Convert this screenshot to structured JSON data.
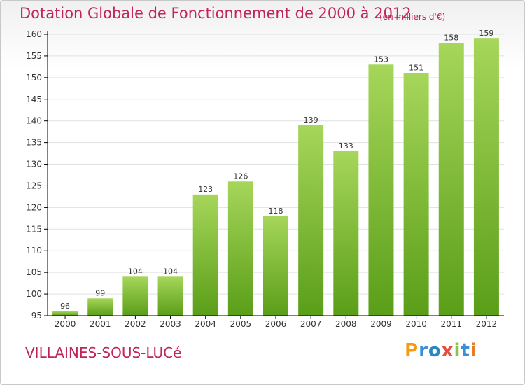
{
  "title": "Dotation Globale de Fonctionnement de 2000 à 2012",
  "subtitle": "(en milliers d'€)",
  "commune": "VILLAINES-SOUS-LUCé",
  "logo_text": "Proxiti",
  "colors": {
    "title": "#c0245a",
    "bar_light": "#a6d65a",
    "bar_dark": "#5a9e18",
    "axis": "#000000",
    "grid": "#e0e0e0",
    "label": "#333333"
  },
  "chart_data": {
    "type": "bar",
    "categories": [
      "2000",
      "2001",
      "2002",
      "2003",
      "2004",
      "2005",
      "2006",
      "2007",
      "2008",
      "2009",
      "2010",
      "2011",
      "2012"
    ],
    "values": [
      96,
      99,
      104,
      104,
      123,
      126,
      118,
      139,
      133,
      153,
      151,
      158,
      159
    ],
    "data_labels": [
      "96",
      "99",
      "104",
      "104",
      "123",
      "126",
      "118",
      "139",
      "133",
      "153",
      "151",
      "158",
      "159"
    ],
    "title": "Dotation Globale de Fonctionnement de 2000 à 2012",
    "ylabel": "",
    "xlabel": "",
    "ylim": [
      95,
      160
    ],
    "yticks": [
      95,
      100,
      105,
      110,
      115,
      120,
      125,
      130,
      135,
      140,
      145,
      150,
      155,
      160
    ],
    "grid": true,
    "legend": "none"
  }
}
